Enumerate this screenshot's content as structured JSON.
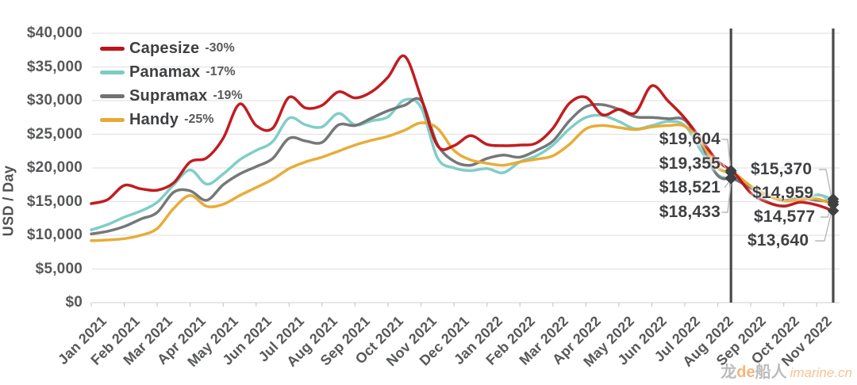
{
  "y_axis_title": "USD / Day",
  "watermark": {
    "cn_main": "龙",
    "cn_de": "de",
    "cn_tail": "船人",
    "site": "imarine.cn"
  },
  "chart_data": {
    "type": "line",
    "title": "",
    "xlabel": "",
    "ylabel": "USD / Day",
    "ylim": [
      0,
      40000
    ],
    "grid": true,
    "legend_position": "top-left",
    "y_tick_labels": [
      "$0",
      "$5,000",
      "$10,000",
      "$15,000",
      "$20,000",
      "$25,000",
      "$30,000",
      "$35,000",
      "$40,000"
    ],
    "y_tick_values": [
      0,
      5000,
      10000,
      15000,
      20000,
      25000,
      30000,
      35000,
      40000
    ],
    "x_tick_labels": [
      "Jan 2021",
      "Feb 2021",
      "Mar 2021",
      "Apr 2021",
      "May 2021",
      "Jun 2021",
      "Jul 2021",
      "Aug 2021",
      "Sep 2021",
      "Oct 2021",
      "Nov 2021",
      "Dec 2021",
      "Jan 2022",
      "Feb 2022",
      "Mar 2022",
      "Apr 2022",
      "May 2022",
      "Jun 2022",
      "Jul 2022",
      "Aug 2022",
      "Sep 2022",
      "Oct 2022",
      "Nov 2022"
    ],
    "points_per_month": 2,
    "series": [
      {
        "name": "Capesize",
        "change": "-30%",
        "color": "#bf1317",
        "values": [
          14700,
          15300,
          17400,
          16900,
          16700,
          17800,
          20900,
          21500,
          24400,
          29500,
          26300,
          25900,
          30500,
          28900,
          29300,
          31300,
          30400,
          31300,
          33500,
          36600,
          30500,
          23300,
          23300,
          24800,
          23500,
          23300,
          23400,
          23700,
          25900,
          29600,
          30500,
          27900,
          28700,
          28200,
          32200,
          29900,
          27400,
          24200,
          21000,
          19250,
          16300,
          14900,
          14300,
          14900,
          14500,
          13640
        ]
      },
      {
        "name": "Panamax",
        "change": "-17%",
        "color": "#7accc5",
        "values": [
          10800,
          11600,
          12700,
          13600,
          14900,
          17500,
          19700,
          17600,
          19100,
          21200,
          22600,
          23900,
          27400,
          26400,
          26100,
          28100,
          26400,
          27000,
          27600,
          30100,
          29000,
          21500,
          20000,
          19600,
          19900,
          19300,
          20900,
          21800,
          23400,
          25800,
          27500,
          27800,
          26900,
          25800,
          26300,
          26900,
          26300,
          22500,
          18950,
          18420,
          17300,
          15000,
          14400,
          15000,
          16000,
          15370
        ]
      },
      {
        "name": "Supramax",
        "change": "-19%",
        "color": "#707173",
        "values": [
          10200,
          10600,
          11300,
          12400,
          13400,
          16400,
          16600,
          15200,
          17500,
          19100,
          20200,
          21400,
          24400,
          24000,
          23800,
          26400,
          26300,
          27400,
          28500,
          29300,
          30000,
          23500,
          21000,
          20400,
          21400,
          21900,
          21600,
          22600,
          24000,
          27000,
          29100,
          29400,
          28700,
          27600,
          27500,
          27300,
          27100,
          23500,
          18850,
          18330,
          17000,
          15900,
          15200,
          15500,
          15200,
          14959
        ]
      },
      {
        "name": "Handy",
        "change": "-25%",
        "color": "#e7a930",
        "values": [
          9200,
          9300,
          9500,
          10000,
          11000,
          14000,
          15900,
          14300,
          14600,
          15900,
          17100,
          18300,
          19900,
          20900,
          21600,
          22500,
          23400,
          24100,
          24700,
          25600,
          26700,
          25900,
          22600,
          21200,
          20700,
          20400,
          20900,
          21300,
          21800,
          23500,
          25800,
          26300,
          26000,
          25700,
          26100,
          26300,
          26200,
          23800,
          20000,
          19200,
          17300,
          16000,
          15100,
          15300,
          15400,
          14577
        ]
      }
    ],
    "annotations": {
      "marker_lines": [
        {
          "name": "aug-2022-marker",
          "x_index": 38.8
        },
        {
          "name": "nov-2022-marker",
          "x_index": 45
        }
      ],
      "callouts_left": [
        {
          "label": "$19,604",
          "value": 19604,
          "series": "Capesize"
        },
        {
          "label": "$19,355",
          "value": 19355,
          "series": "Handy"
        },
        {
          "label": "$18,521",
          "value": 18521,
          "series": "Panamax"
        },
        {
          "label": "$18,433",
          "value": 18433,
          "series": "Supramax"
        }
      ],
      "callouts_right": [
        {
          "label": "$15,370",
          "value": 15370,
          "series": "Panamax"
        },
        {
          "label": "$14,959",
          "value": 14959,
          "series": "Supramax"
        },
        {
          "label": "$14,577",
          "value": 14577,
          "series": "Handy"
        },
        {
          "label": "$13,640",
          "value": 13640,
          "series": "Capesize"
        }
      ]
    },
    "colors": {
      "grid": "#e3e3e3",
      "axis": "#d6d6d6",
      "tick": "#c9c9c9",
      "marker_line": "#4a4a4a",
      "diamond": "#3f4041",
      "leader": "#b8b8b8",
      "text": "#57585a"
    }
  }
}
